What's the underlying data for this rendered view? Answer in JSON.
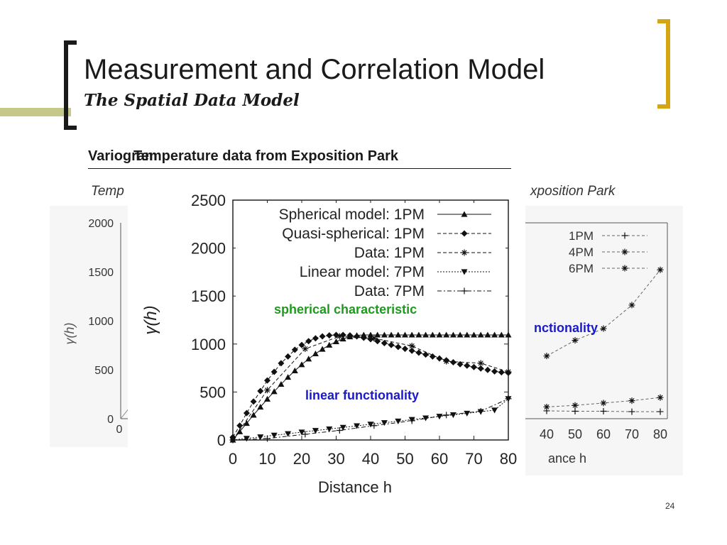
{
  "slide": {
    "title": "Measurement and Correlation Model",
    "subtitle": "The Spatial Data Model",
    "head_left": "Variogram",
    "head_right": "Temperature data from Exposition Park",
    "caption_left": "Temp",
    "caption_right": "xposition Park",
    "page_number": "24",
    "colors": {
      "left_bracket": "#1a1a1a",
      "right_bracket": "#d4a514",
      "stripe": "#c6c88a",
      "green_label": "#1f9a1f",
      "blue_label": "#1a1ac8"
    }
  },
  "annotations": {
    "spherical": "spherical characteristic",
    "linear": "linear functionality",
    "right_partial": "nctionality"
  },
  "chart_data": [
    {
      "type": "line",
      "title": "",
      "xlabel": "Distance h",
      "ylabel": "γ(h)",
      "xlim": [
        0,
        80
      ],
      "ylim": [
        0,
        2500
      ],
      "x_ticks": [
        "0",
        "10",
        "20",
        "30",
        "40",
        "50",
        "60",
        "70",
        "80"
      ],
      "y_ticks": [
        "0",
        "500",
        "1000",
        "1500",
        "2000",
        "2500"
      ],
      "legend_position": "top-right",
      "series": [
        {
          "name": "Spherical model: 1PM",
          "marker": "triangle-up",
          "style": "solid",
          "x": [
            0,
            2,
            4,
            6,
            8,
            10,
            12,
            14,
            16,
            18,
            20,
            22,
            24,
            26,
            28,
            30,
            32,
            34,
            36,
            38,
            40,
            42,
            44,
            46,
            48,
            50,
            52,
            54,
            56,
            58,
            60,
            62,
            64,
            66,
            68,
            70,
            72,
            74,
            76,
            78,
            80
          ],
          "values": [
            0,
            87,
            174,
            260,
            344,
            426,
            505,
            581,
            654,
            722,
            786,
            845,
            899,
            947,
            989,
            1025,
            1054,
            1076,
            1090,
            1095,
            1095,
            1095,
            1095,
            1095,
            1095,
            1095,
            1095,
            1095,
            1095,
            1095,
            1095,
            1095,
            1095,
            1095,
            1095,
            1095,
            1095,
            1095,
            1095,
            1095,
            1095
          ]
        },
        {
          "name": "Quasi-spherical: 1PM",
          "marker": "diamond",
          "style": "dashed",
          "x": [
            0,
            2,
            4,
            6,
            8,
            10,
            12,
            14,
            16,
            18,
            20,
            22,
            24,
            26,
            28,
            30,
            32,
            34,
            36,
            38,
            40,
            42,
            44,
            46,
            48,
            50,
            52,
            54,
            56,
            58,
            60,
            62,
            64,
            66,
            68,
            70,
            72,
            74,
            76,
            78,
            80
          ],
          "values": [
            30,
            150,
            280,
            400,
            510,
            620,
            710,
            800,
            870,
            940,
            990,
            1030,
            1060,
            1080,
            1090,
            1095,
            1095,
            1090,
            1080,
            1065,
            1050,
            1030,
            1010,
            990,
            970,
            950,
            930,
            910,
            890,
            870,
            850,
            830,
            810,
            790,
            775,
            760,
            745,
            730,
            715,
            705,
            700
          ]
        },
        {
          "name": "Data: 1PM",
          "marker": "asterisk",
          "style": "dashed",
          "x": [
            0,
            10,
            21,
            31,
            41,
            52,
            62,
            72,
            80
          ],
          "values": [
            0,
            520,
            950,
            1080,
            1060,
            980,
            820,
            800,
            710
          ]
        },
        {
          "name": "Linear model: 7PM",
          "marker": "triangle-down",
          "style": "dotted",
          "x": [
            0,
            4,
            8,
            12,
            16,
            20,
            24,
            28,
            32,
            36,
            40,
            44,
            48,
            52,
            56,
            60,
            64,
            68,
            72,
            76,
            80
          ],
          "values": [
            0,
            16,
            32,
            49,
            65,
            82,
            98,
            114,
            131,
            147,
            164,
            180,
            196,
            213,
            229,
            246,
            262,
            278,
            295,
            311,
            430
          ]
        },
        {
          "name": "Data: 7PM",
          "marker": "plus",
          "style": "dashdot",
          "x": [
            0,
            10,
            21,
            31,
            41,
            52,
            62,
            72,
            80
          ],
          "values": [
            0,
            15,
            60,
            100,
            150,
            200,
            260,
            300,
            430
          ]
        }
      ]
    }
  ],
  "background_charts": {
    "left": {
      "y_ticks": [
        "2000",
        "1500",
        "1000",
        "500",
        "0"
      ],
      "x_first_tick": "0"
    },
    "right": {
      "legend": [
        "1PM",
        "4PM",
        "6PM"
      ],
      "x_ticks": [
        "40",
        "50",
        "60",
        "70",
        "80"
      ],
      "xlabel_partial": "ance h",
      "series": [
        {
          "name": "1PM",
          "x": [
            40,
            50,
            60,
            70,
            80
          ],
          "values": [
            100,
            95,
            95,
            90,
            90
          ]
        },
        {
          "name": "4PM",
          "x": [
            40,
            50,
            60,
            70,
            80
          ],
          "values": [
            150,
            170,
            200,
            230,
            270
          ]
        },
        {
          "name": "6PM",
          "x": [
            40,
            50,
            60,
            70,
            80
          ],
          "values": [
            800,
            1000,
            1150,
            1450,
            1900
          ]
        }
      ]
    }
  }
}
